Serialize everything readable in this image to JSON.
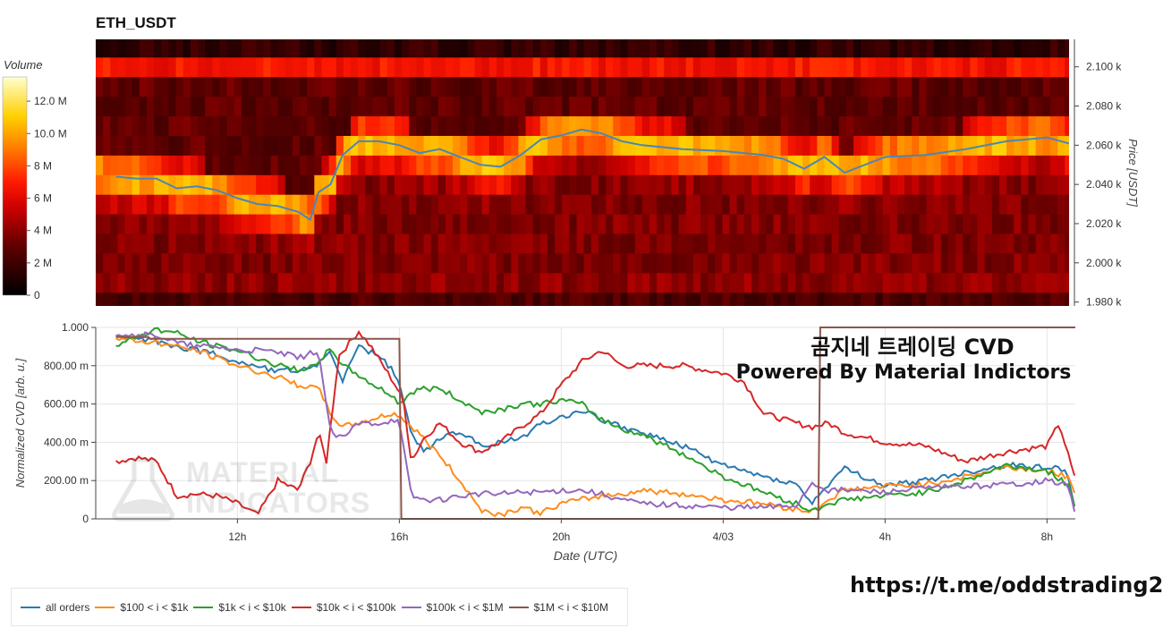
{
  "heatmap": {
    "title": "ETH_USDT",
    "colorbar_title": "Volume",
    "colorbar_ticks": [
      {
        "value": 12,
        "label": "12.0 M"
      },
      {
        "value": 10,
        "label": "10.0 M"
      },
      {
        "value": 8,
        "label": "8 M"
      },
      {
        "value": 6,
        "label": "6 M"
      },
      {
        "value": 4,
        "label": "4 M"
      },
      {
        "value": 2,
        "label": "2 M"
      },
      {
        "value": 0,
        "label": "0"
      }
    ],
    "colorbar_range": [
      0,
      13.5
    ],
    "y_axis_title": "Price [USDT]",
    "y_ticks": [
      {
        "value": 2100,
        "label": "2.100 k"
      },
      {
        "value": 2080,
        "label": "2.080 k"
      },
      {
        "value": 2060,
        "label": "2.060 k"
      },
      {
        "value": 2040,
        "label": "2.040 k"
      },
      {
        "value": 2020,
        "label": "2.020 k"
      },
      {
        "value": 2000,
        "label": "2.000 k"
      },
      {
        "value": 1980,
        "label": "1.980 k"
      }
    ],
    "y_range": [
      1978,
      2114
    ],
    "price_line_color": "#4a86b8"
  },
  "cvd": {
    "y_axis_title": "Normalized CVD [arb. u.]",
    "x_axis_title": "Date (UTC)",
    "y_ticks": [
      {
        "value": 1.0,
        "label": "1.000"
      },
      {
        "value": 0.8,
        "label": "800.00 m"
      },
      {
        "value": 0.6,
        "label": "600.00 m"
      },
      {
        "value": 0.4,
        "label": "400.00 m"
      },
      {
        "value": 0.2,
        "label": "200.00 m"
      },
      {
        "value": 0.0,
        "label": "0"
      }
    ],
    "x_ticks": [
      {
        "value": 12,
        "label": "12h"
      },
      {
        "value": 16,
        "label": "16h"
      },
      {
        "value": 20,
        "label": "20h"
      },
      {
        "value": 24,
        "label": "4/03"
      },
      {
        "value": 28,
        "label": "4h"
      },
      {
        "value": 32,
        "label": "8h"
      }
    ],
    "x_range": [
      8.5,
      32.7
    ]
  },
  "overlay": {
    "line1": "곰지네 트레이딩 CVD",
    "line2": "Powered By Material Indictors",
    "url": "https://t.me/oddstrading2"
  },
  "watermark": {
    "line1": "MATERIAL",
    "line2": "INDICATORS"
  },
  "chart_data": [
    {
      "type": "heatmap",
      "title": "ETH_USDT",
      "ylabel": "Price [USDT]",
      "colorbar_label": "Volume",
      "price_levels": [
        2110,
        2100,
        2090,
        2080,
        2070,
        2060,
        2050,
        2040,
        2030,
        2020,
        2010,
        2000,
        1990,
        1980
      ],
      "volume_by_level_M": {
        "2100": 3.5,
        "2080": 3,
        "2070": 10.5,
        "2060": 9,
        "2050": 5.5,
        "2040": 4.5,
        "2030": 5,
        "2020": 6,
        "2010": 4.5,
        "2000": 5,
        "1990": 2,
        "1980": 1
      },
      "price_series": {
        "name": "",
        "x": [
          9.0,
          9.5,
          10.0,
          10.5,
          11.0,
          11.5,
          12.0,
          12.5,
          13.0,
          13.5,
          13.8,
          14.0,
          14.3,
          14.6,
          15.0,
          15.5,
          16.0,
          16.5,
          17.0,
          17.5,
          18.0,
          18.5,
          19.0,
          19.5,
          20.0,
          20.5,
          21.0,
          21.5,
          22.0,
          23.0,
          24.0,
          25.0,
          25.5,
          26.0,
          26.5,
          27.0,
          28.0,
          29.0,
          30.0,
          31.0,
          32.0,
          32.7
        ],
        "y": [
          2044,
          2043,
          2043,
          2038,
          2039,
          2037,
          2033,
          2030,
          2029,
          2026,
          2022,
          2036,
          2040,
          2055,
          2062,
          2062,
          2060,
          2056,
          2058,
          2054,
          2050,
          2049,
          2055,
          2063,
          2065,
          2068,
          2066,
          2062,
          2060,
          2058,
          2057,
          2055,
          2053,
          2048,
          2054,
          2046,
          2054,
          2055,
          2058,
          2062,
          2064,
          2060
        ]
      }
    },
    {
      "type": "line",
      "xlabel": "Date (UTC)",
      "ylabel": "Normalized CVD [arb. u.]",
      "ylim": [
        0,
        1.0
      ],
      "series": [
        {
          "name": "all orders",
          "color": "#2a7ab0",
          "x": [
            9.0,
            9.5,
            10.0,
            10.5,
            11.0,
            11.5,
            12.0,
            12.5,
            13.0,
            13.5,
            14.0,
            14.3,
            14.6,
            15.0,
            15.5,
            15.8,
            16.0,
            16.3,
            16.6,
            17.0,
            17.5,
            18.0,
            18.5,
            19.0,
            19.5,
            20.0,
            20.5,
            21.0,
            21.5,
            22.0,
            23.0,
            24.0,
            25.0,
            25.8,
            26.2,
            26.6,
            27.0,
            28.0,
            29.0,
            30.0,
            31.0,
            32.0,
            32.5,
            32.7
          ],
          "y": [
            0.95,
            0.94,
            0.93,
            0.9,
            0.88,
            0.86,
            0.82,
            0.8,
            0.77,
            0.78,
            0.8,
            0.88,
            0.72,
            0.9,
            0.85,
            0.78,
            0.7,
            0.45,
            0.35,
            0.42,
            0.46,
            0.38,
            0.4,
            0.42,
            0.5,
            0.53,
            0.57,
            0.52,
            0.48,
            0.45,
            0.38,
            0.28,
            0.22,
            0.18,
            0.08,
            0.18,
            0.26,
            0.17,
            0.2,
            0.24,
            0.28,
            0.27,
            0.25,
            0.05
          ]
        },
        {
          "name": "$100 < i < $1k",
          "color": "#ff8c1a",
          "x": [
            9.0,
            9.5,
            10.0,
            10.5,
            11.0,
            11.5,
            12.0,
            12.5,
            13.0,
            13.5,
            14.0,
            14.3,
            14.6,
            15.0,
            15.5,
            15.8,
            16.0,
            16.3,
            16.6,
            17.0,
            17.5,
            18.0,
            18.5,
            19.0,
            19.5,
            20.0,
            20.5,
            21.0,
            21.5,
            22.0,
            23.0,
            24.0,
            25.0,
            25.8,
            26.2,
            26.6,
            27.0,
            28.0,
            29.0,
            30.0,
            31.0,
            32.0,
            32.5,
            32.7
          ],
          "y": [
            0.94,
            0.93,
            0.92,
            0.9,
            0.88,
            0.84,
            0.8,
            0.77,
            0.74,
            0.7,
            0.68,
            0.55,
            0.48,
            0.5,
            0.53,
            0.55,
            0.54,
            0.48,
            0.42,
            0.33,
            0.2,
            0.05,
            0.02,
            0.06,
            0.03,
            0.08,
            0.1,
            0.12,
            0.13,
            0.15,
            0.13,
            0.1,
            0.08,
            0.05,
            0.04,
            0.1,
            0.15,
            0.17,
            0.18,
            0.22,
            0.27,
            0.25,
            0.22,
            0.12
          ]
        },
        {
          "name": "$1k < i < $10k",
          "color": "#2ca02c",
          "x": [
            9.0,
            9.5,
            10.0,
            10.5,
            11.0,
            11.5,
            12.0,
            12.5,
            13.0,
            13.5,
            14.0,
            14.3,
            14.6,
            15.0,
            15.5,
            15.8,
            16.0,
            16.3,
            16.6,
            17.0,
            17.5,
            18.0,
            18.5,
            19.0,
            19.5,
            20.0,
            20.5,
            21.0,
            21.5,
            22.0,
            23.0,
            24.0,
            25.0,
            25.8,
            26.2,
            26.6,
            27.0,
            28.0,
            29.0,
            30.0,
            31.0,
            32.0,
            32.5,
            32.7
          ],
          "y": [
            0.9,
            0.95,
            0.99,
            0.97,
            0.93,
            0.9,
            0.88,
            0.84,
            0.8,
            0.78,
            0.8,
            0.9,
            0.8,
            0.75,
            0.68,
            0.65,
            0.6,
            0.66,
            0.68,
            0.68,
            0.62,
            0.56,
            0.57,
            0.6,
            0.6,
            0.62,
            0.6,
            0.52,
            0.47,
            0.44,
            0.34,
            0.22,
            0.14,
            0.08,
            0.04,
            0.08,
            0.1,
            0.12,
            0.14,
            0.2,
            0.28,
            0.25,
            0.18,
            0.05
          ]
        },
        {
          "name": "$10k < i < $100k",
          "color": "#d62728",
          "x": [
            9.0,
            9.5,
            10.0,
            10.5,
            11.0,
            11.5,
            12.0,
            12.5,
            13.0,
            13.5,
            13.8,
            14.0,
            14.2,
            14.5,
            15.0,
            15.3,
            15.6,
            15.9,
            16.1,
            16.3,
            16.6,
            17.0,
            17.5,
            18.0,
            18.5,
            19.0,
            19.5,
            20.0,
            20.5,
            21.0,
            21.5,
            22.0,
            23.0,
            24.0,
            24.5,
            25.0,
            25.8,
            26.2,
            26.6,
            27.0,
            28.0,
            29.0,
            30.0,
            31.0,
            32.0,
            32.3,
            32.5,
            32.7
          ],
          "y": [
            0.3,
            0.32,
            0.3,
            0.12,
            0.13,
            0.12,
            0.08,
            0.02,
            0.2,
            0.15,
            0.3,
            0.45,
            0.3,
            0.85,
            0.98,
            0.9,
            0.8,
            0.7,
            0.62,
            0.3,
            0.42,
            0.5,
            0.4,
            0.35,
            0.4,
            0.48,
            0.55,
            0.7,
            0.82,
            0.88,
            0.8,
            0.8,
            0.8,
            0.76,
            0.72,
            0.55,
            0.5,
            0.48,
            0.5,
            0.45,
            0.4,
            0.38,
            0.3,
            0.35,
            0.38,
            0.5,
            0.35,
            0.2
          ]
        },
        {
          "name": "$100k < i < $1M",
          "color": "#9467bd",
          "x": [
            9.0,
            9.5,
            10.0,
            10.5,
            11.0,
            11.5,
            12.0,
            12.5,
            13.0,
            13.5,
            14.0,
            14.3,
            14.6,
            15.0,
            15.5,
            15.9,
            16.0,
            16.3,
            16.6,
            17.0,
            17.5,
            18.0,
            18.5,
            19.0,
            19.5,
            20.0,
            20.5,
            21.0,
            21.5,
            22.0,
            23.0,
            24.0,
            25.0,
            25.8,
            26.2,
            26.6,
            27.0,
            28.0,
            29.0,
            30.0,
            31.0,
            32.0,
            32.5,
            32.7
          ],
          "y": [
            0.97,
            0.96,
            0.96,
            0.92,
            0.9,
            0.9,
            0.88,
            0.88,
            0.87,
            0.84,
            0.88,
            0.45,
            0.42,
            0.5,
            0.5,
            0.52,
            0.5,
            0.12,
            0.1,
            0.1,
            0.12,
            0.13,
            0.13,
            0.14,
            0.14,
            0.15,
            0.15,
            0.13,
            0.1,
            0.08,
            0.07,
            0.06,
            0.06,
            0.07,
            0.19,
            0.15,
            0.15,
            0.14,
            0.16,
            0.17,
            0.18,
            0.2,
            0.18,
            0.03
          ]
        },
        {
          "name": "$1M < i < $10M",
          "color": "#8c564b",
          "x": [
            9.0,
            9.8,
            9.85,
            16.0,
            16.05,
            26.35,
            26.4,
            32.7
          ],
          "y": [
            0.95,
            0.95,
            0.94,
            0.94,
            0.0,
            0.0,
            1.0,
            1.0
          ]
        }
      ]
    }
  ]
}
